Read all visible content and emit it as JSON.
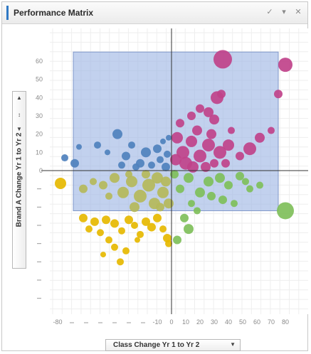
{
  "panel": {
    "title": "Performance Matrix",
    "icons": [
      "check-icon",
      "filter-icon",
      "close-icon"
    ]
  },
  "controls": {
    "y_axis_label": "Brand A Change Yr 1 to Yr 2",
    "x_axis_label": "Class Change Yr 1 to Yr 2"
  },
  "chart_data": {
    "type": "scatter",
    "title": "Performance Matrix",
    "xlabel": "Class Change Yr 1 to Yr 2",
    "ylabel": "Brand A Change Yr 1 to Yr 2",
    "xlim": [
      -80,
      85
    ],
    "ylim": [
      -75,
      75
    ],
    "x_ticks": [
      "-80",
      "-10",
      "0",
      "10",
      "20",
      "30",
      "40",
      "50",
      "60",
      "70",
      "80"
    ],
    "y_ticks": [
      "60",
      "50",
      "40",
      "30",
      "20",
      "10",
      "0"
    ],
    "grid": true,
    "highlight_rect": {
      "x": [
        -69,
        75
      ],
      "y": [
        -22,
        65
      ],
      "color": "#9db4e3"
    },
    "colors": {
      "blue": "#4f81bd",
      "magenta": "#c0428a",
      "green": "#7fbf5a",
      "olive": "#b5b85a",
      "yellow": "#e6b800"
    },
    "series": [
      {
        "color_key": "blue",
        "points": [
          [
            -75,
            7,
            5
          ],
          [
            -68,
            4,
            6
          ],
          [
            -65,
            13,
            4
          ],
          [
            -52,
            14,
            5
          ],
          [
            -45,
            10,
            4
          ],
          [
            -38,
            20,
            7
          ],
          [
            -32,
            8,
            6
          ],
          [
            -28,
            14,
            5
          ],
          [
            -22,
            4,
            6
          ],
          [
            -18,
            10,
            7
          ],
          [
            -14,
            3,
            5
          ],
          [
            -10,
            12,
            6
          ],
          [
            -8,
            6,
            5
          ],
          [
            -6,
            16,
            4
          ],
          [
            -4,
            2,
            6
          ],
          [
            -3,
            9,
            5
          ],
          [
            -2,
            18,
            4
          ],
          [
            -25,
            2,
            5
          ],
          [
            -35,
            3,
            5
          ]
        ]
      },
      {
        "color_key": "magenta",
        "points": [
          [
            36,
            61,
            13
          ],
          [
            80,
            58,
            10
          ],
          [
            75,
            42,
            6
          ],
          [
            32,
            40,
            9
          ],
          [
            35,
            42,
            6
          ],
          [
            26,
            32,
            7
          ],
          [
            20,
            34,
            6
          ],
          [
            14,
            30,
            6
          ],
          [
            30,
            28,
            7
          ],
          [
            42,
            22,
            5
          ],
          [
            55,
            12,
            9
          ],
          [
            62,
            18,
            7
          ],
          [
            70,
            22,
            5
          ],
          [
            48,
            8,
            6
          ],
          [
            40,
            14,
            8
          ],
          [
            34,
            10,
            9
          ],
          [
            26,
            14,
            9
          ],
          [
            20,
            8,
            9
          ],
          [
            14,
            16,
            8
          ],
          [
            8,
            10,
            9
          ],
          [
            4,
            18,
            8
          ],
          [
            3,
            6,
            8
          ],
          [
            10,
            4,
            9
          ],
          [
            18,
            22,
            7
          ],
          [
            28,
            20,
            7
          ],
          [
            38,
            4,
            6
          ],
          [
            24,
            2,
            7
          ],
          [
            15,
            2,
            8
          ],
          [
            6,
            26,
            6
          ],
          [
            30,
            4,
            6
          ]
        ]
      },
      {
        "color_key": "green",
        "points": [
          [
            80,
            -22,
            12
          ],
          [
            34,
            -4,
            7
          ],
          [
            40,
            -8,
            6
          ],
          [
            48,
            -3,
            6
          ],
          [
            55,
            -10,
            5
          ],
          [
            36,
            -16,
            6
          ],
          [
            26,
            -6,
            7
          ],
          [
            20,
            -12,
            7
          ],
          [
            12,
            -4,
            7
          ],
          [
            6,
            -10,
            6
          ],
          [
            14,
            -18,
            5
          ],
          [
            2,
            -2,
            6
          ],
          [
            28,
            -14,
            6
          ],
          [
            44,
            -18,
            5
          ],
          [
            52,
            -6,
            5
          ],
          [
            9,
            -26,
            6
          ],
          [
            12,
            -32,
            7
          ],
          [
            4,
            -38,
            6
          ],
          [
            62,
            -8,
            5
          ],
          [
            18,
            -22,
            5
          ]
        ]
      },
      {
        "color_key": "olive",
        "points": [
          [
            -62,
            -10,
            6
          ],
          [
            -55,
            -6,
            5
          ],
          [
            -48,
            -8,
            6
          ],
          [
            -40,
            -4,
            7
          ],
          [
            -34,
            -12,
            8
          ],
          [
            -28,
            -6,
            8
          ],
          [
            -22,
            -14,
            9
          ],
          [
            -16,
            -8,
            9
          ],
          [
            -10,
            -4,
            8
          ],
          [
            -6,
            -12,
            8
          ],
          [
            -2,
            -18,
            7
          ],
          [
            -12,
            -18,
            8
          ],
          [
            -26,
            -20,
            7
          ],
          [
            -18,
            -2,
            6
          ],
          [
            -8,
            -20,
            6
          ],
          [
            -30,
            -2,
            5
          ],
          [
            -44,
            -14,
            5
          ],
          [
            -4,
            -6,
            7
          ]
        ]
      },
      {
        "color_key": "yellow",
        "points": [
          [
            -78,
            -7,
            8
          ],
          [
            -62,
            -26,
            6
          ],
          [
            -58,
            -32,
            5
          ],
          [
            -54,
            -28,
            6
          ],
          [
            -50,
            -34,
            5
          ],
          [
            -46,
            -27,
            6
          ],
          [
            -40,
            -29,
            6
          ],
          [
            -35,
            -33,
            5
          ],
          [
            -30,
            -27,
            6
          ],
          [
            -26,
            -30,
            5
          ],
          [
            -22,
            -35,
            5
          ],
          [
            -18,
            -28,
            6
          ],
          [
            -14,
            -31,
            6
          ],
          [
            -10,
            -26,
            6
          ],
          [
            -6,
            -32,
            5
          ],
          [
            -3,
            -37,
            6
          ],
          [
            -2,
            -40,
            5
          ],
          [
            -40,
            -42,
            5
          ],
          [
            -44,
            -38,
            5
          ],
          [
            -36,
            -50,
            5
          ],
          [
            -48,
            -46,
            4
          ],
          [
            -32,
            -44,
            5
          ],
          [
            -24,
            -38,
            4
          ]
        ]
      }
    ]
  }
}
